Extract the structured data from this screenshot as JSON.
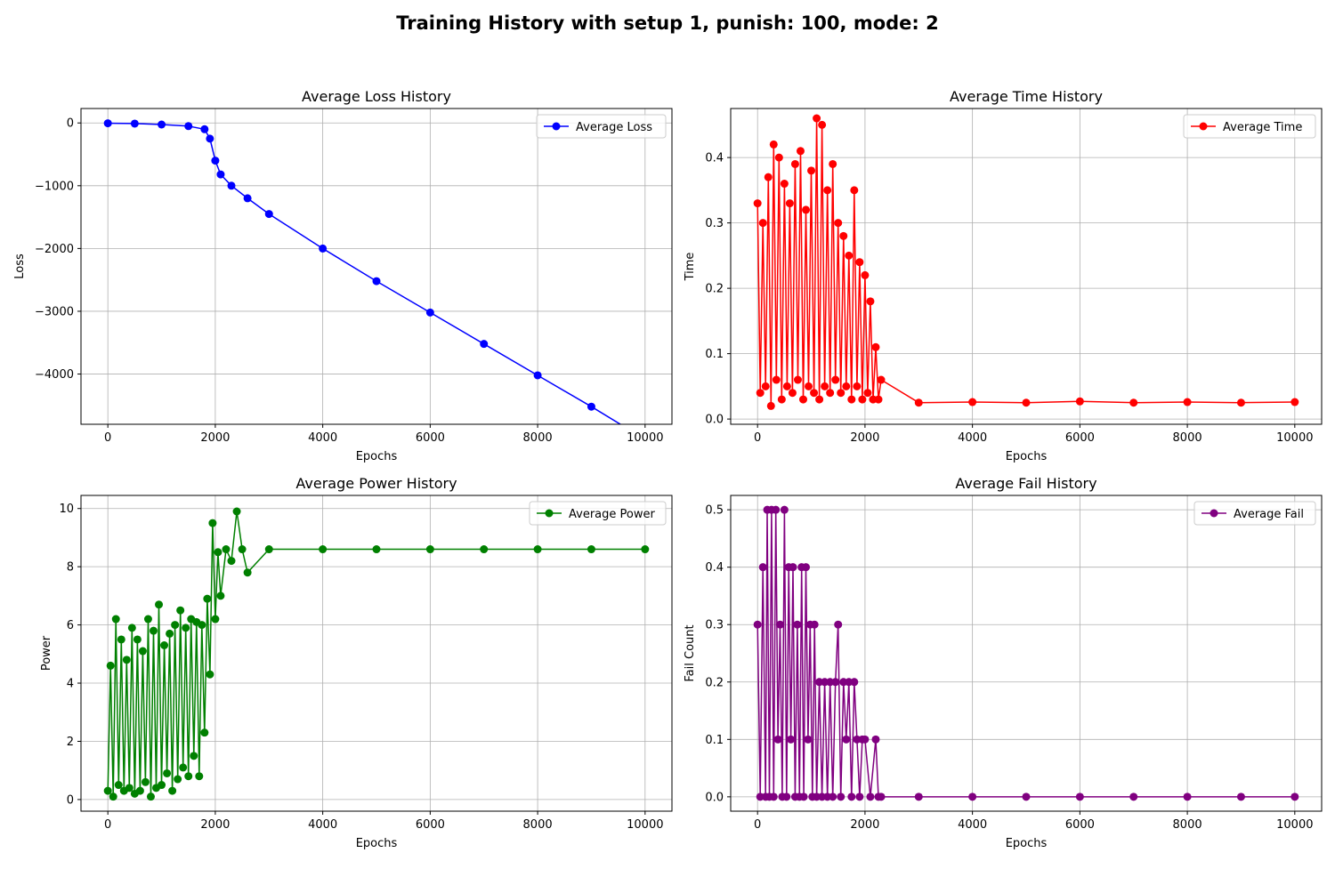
{
  "figure": {
    "suptitle": "Training History with setup 1, punish: 100, mode: 2"
  },
  "chart_data": [
    {
      "id": "loss",
      "type": "line",
      "title": "Average Loss History",
      "xlabel": "Epochs",
      "ylabel": "Loss",
      "legend": "Average Loss",
      "legend_position": "upper right",
      "color": "#0000ff",
      "grid": true,
      "xlim": [
        -500,
        10500
      ],
      "ylim": [
        -4800,
        230
      ],
      "xticks": [
        0,
        2000,
        4000,
        6000,
        8000,
        10000
      ],
      "yticks": [
        0,
        -1000,
        -2000,
        -3000,
        -4000
      ],
      "xtick_labels": [
        "0",
        "2000",
        "4000",
        "6000",
        "8000",
        "10000"
      ],
      "ytick_labels": [
        "0",
        "−1000",
        "−2000",
        "−3000",
        "−4000"
      ],
      "series": [
        {
          "name": "Average Loss",
          "x": [
            0,
            500,
            1000,
            1500,
            1800,
            1900,
            2000,
            2100,
            2300,
            2600,
            3000,
            4000,
            5000,
            6000,
            7000,
            8000,
            9000,
            10000
          ],
          "y": [
            -5,
            -10,
            -25,
            -50,
            -100,
            -250,
            -600,
            -820,
            -1000,
            -1200,
            -1450,
            -2000,
            -2520,
            -3020,
            -3520,
            -4020,
            -4520,
            -5040
          ]
        }
      ]
    },
    {
      "id": "time",
      "type": "line",
      "title": "Average Time History",
      "xlabel": "Epochs",
      "ylabel": "Time",
      "legend": "Average Time",
      "legend_position": "upper right",
      "color": "#ff0000",
      "grid": true,
      "xlim": [
        -500,
        10500
      ],
      "ylim": [
        -0.008,
        0.475
      ],
      "xticks": [
        0,
        2000,
        4000,
        6000,
        8000,
        10000
      ],
      "yticks": [
        0.0,
        0.1,
        0.2,
        0.3,
        0.4
      ],
      "xtick_labels": [
        "0",
        "2000",
        "4000",
        "6000",
        "8000",
        "10000"
      ],
      "ytick_labels": [
        "0.0",
        "0.1",
        "0.2",
        "0.3",
        "0.4"
      ],
      "series": [
        {
          "name": "Average Time",
          "x": [
            0,
            50,
            100,
            150,
            200,
            250,
            300,
            350,
            400,
            450,
            500,
            550,
            600,
            650,
            700,
            750,
            800,
            850,
            900,
            950,
            1000,
            1050,
            1100,
            1150,
            1200,
            1250,
            1300,
            1350,
            1400,
            1450,
            1500,
            1550,
            1600,
            1650,
            1700,
            1750,
            1800,
            1850,
            1900,
            1950,
            2000,
            2050,
            2100,
            2150,
            2200,
            2250,
            2300,
            3000,
            4000,
            5000,
            6000,
            7000,
            8000,
            9000,
            10000
          ],
          "y": [
            0.33,
            0.04,
            0.3,
            0.05,
            0.37,
            0.02,
            0.42,
            0.06,
            0.4,
            0.03,
            0.36,
            0.05,
            0.33,
            0.04,
            0.39,
            0.06,
            0.41,
            0.03,
            0.32,
            0.05,
            0.38,
            0.04,
            0.46,
            0.03,
            0.45,
            0.05,
            0.35,
            0.04,
            0.39,
            0.06,
            0.3,
            0.04,
            0.28,
            0.05,
            0.25,
            0.03,
            0.35,
            0.05,
            0.24,
            0.03,
            0.22,
            0.04,
            0.18,
            0.03,
            0.11,
            0.03,
            0.06,
            0.025,
            0.026,
            0.025,
            0.027,
            0.025,
            0.026,
            0.025,
            0.026
          ]
        }
      ]
    },
    {
      "id": "power",
      "type": "line",
      "title": "Average Power History",
      "xlabel": "Epochs",
      "ylabel": "Power",
      "legend": "Average Power",
      "legend_position": "upper right",
      "color": "#008000",
      "grid": true,
      "xlim": [
        -500,
        10500
      ],
      "ylim": [
        -0.4,
        10.45
      ],
      "xticks": [
        0,
        2000,
        4000,
        6000,
        8000,
        10000
      ],
      "yticks": [
        0,
        2,
        4,
        6,
        8,
        10
      ],
      "xtick_labels": [
        "0",
        "2000",
        "4000",
        "6000",
        "8000",
        "10000"
      ],
      "ytick_labels": [
        "0",
        "2",
        "4",
        "6",
        "8",
        "10"
      ],
      "series": [
        {
          "name": "Average Power",
          "x": [
            0,
            50,
            100,
            150,
            200,
            250,
            300,
            350,
            400,
            450,
            500,
            550,
            600,
            650,
            700,
            750,
            800,
            850,
            900,
            950,
            1000,
            1050,
            1100,
            1150,
            1200,
            1250,
            1300,
            1350,
            1400,
            1450,
            1500,
            1550,
            1600,
            1650,
            1700,
            1750,
            1800,
            1850,
            1900,
            1950,
            2000,
            2050,
            2100,
            2200,
            2300,
            2400,
            2500,
            2600,
            3000,
            4000,
            5000,
            6000,
            7000,
            8000,
            9000,
            10000
          ],
          "y": [
            0.3,
            4.6,
            0.1,
            6.2,
            0.5,
            5.5,
            0.3,
            4.8,
            0.4,
            5.9,
            0.2,
            5.5,
            0.3,
            5.1,
            0.6,
            6.2,
            0.1,
            5.8,
            0.4,
            6.7,
            0.5,
            5.3,
            0.9,
            5.7,
            0.3,
            6.0,
            0.7,
            6.5,
            1.1,
            5.9,
            0.8,
            6.2,
            1.5,
            6.1,
            0.8,
            6.0,
            2.3,
            6.9,
            4.3,
            9.5,
            6.2,
            8.5,
            7.0,
            8.6,
            8.2,
            9.9,
            8.6,
            7.8,
            8.6,
            8.6,
            8.6,
            8.6,
            8.6,
            8.6,
            8.6,
            8.6
          ]
        }
      ]
    },
    {
      "id": "fail",
      "type": "line",
      "title": "Average Fail History",
      "xlabel": "Epochs",
      "ylabel": "Fail Count",
      "legend": "Average Fail",
      "legend_position": "upper right",
      "color": "#800080",
      "grid": true,
      "xlim": [
        -500,
        10500
      ],
      "ylim": [
        -0.025,
        0.525
      ],
      "xticks": [
        0,
        2000,
        4000,
        6000,
        8000,
        10000
      ],
      "yticks": [
        0.0,
        0.1,
        0.2,
        0.3,
        0.4,
        0.5
      ],
      "xtick_labels": [
        "0",
        "2000",
        "4000",
        "6000",
        "8000",
        "10000"
      ],
      "ytick_labels": [
        "0.0",
        "0.1",
        "0.2",
        "0.3",
        "0.4",
        "0.5"
      ],
      "series": [
        {
          "name": "Average Fail",
          "x": [
            0,
            50,
            100,
            150,
            180,
            220,
            260,
            300,
            340,
            380,
            420,
            460,
            500,
            540,
            580,
            620,
            660,
            700,
            740,
            780,
            820,
            860,
            900,
            940,
            980,
            1020,
            1060,
            1100,
            1150,
            1200,
            1250,
            1300,
            1350,
            1400,
            1450,
            1500,
            1550,
            1600,
            1650,
            1700,
            1750,
            1800,
            1850,
            1900,
            1950,
            2000,
            2100,
            2200,
            2250,
            2300,
            3000,
            4000,
            5000,
            6000,
            7000,
            8000,
            9000,
            10000
          ],
          "y": [
            0.3,
            0.0,
            0.4,
            0.0,
            0.5,
            0.0,
            0.5,
            0.0,
            0.5,
            0.1,
            0.3,
            0.0,
            0.5,
            0.0,
            0.4,
            0.1,
            0.4,
            0.0,
            0.3,
            0.0,
            0.4,
            0.0,
            0.4,
            0.1,
            0.3,
            0.0,
            0.3,
            0.0,
            0.2,
            0.0,
            0.2,
            0.0,
            0.2,
            0.0,
            0.2,
            0.3,
            0.0,
            0.2,
            0.1,
            0.2,
            0.0,
            0.2,
            0.1,
            0.0,
            0.1,
            0.1,
            0.0,
            0.1,
            0.0,
            0.0,
            0.0,
            0.0,
            0.0,
            0.0,
            0.0,
            0.0,
            0.0,
            0.0
          ]
        }
      ]
    }
  ]
}
